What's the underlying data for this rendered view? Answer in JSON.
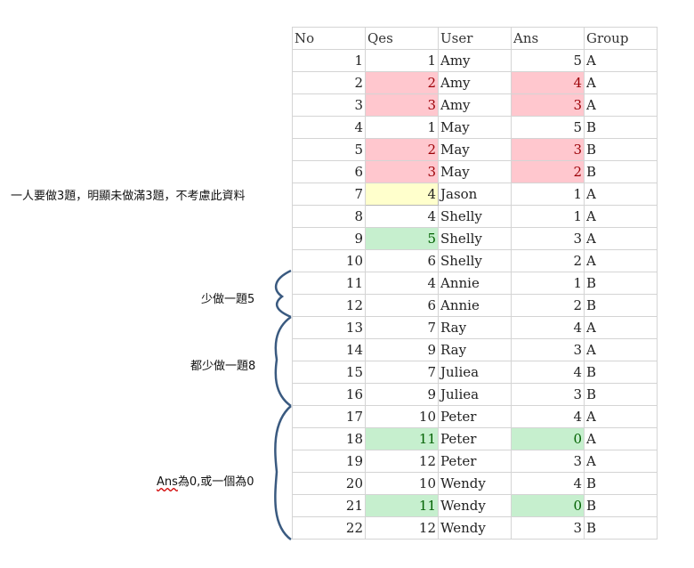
{
  "sheet": {
    "headers": [
      "No",
      "Qes",
      "User",
      "Ans",
      "Group"
    ],
    "rows": [
      {
        "no": "1",
        "qes": "1",
        "user": "Amy",
        "ans": "5",
        "group": "A"
      },
      {
        "no": "2",
        "qes": "2",
        "user": "Amy",
        "ans": "4",
        "group": "A",
        "qes_fill": "pink",
        "ans_fill": "pink"
      },
      {
        "no": "3",
        "qes": "3",
        "user": "Amy",
        "ans": "3",
        "group": "A",
        "qes_fill": "pink",
        "ans_fill": "pink"
      },
      {
        "no": "4",
        "qes": "1",
        "user": "May",
        "ans": "5",
        "group": "B"
      },
      {
        "no": "5",
        "qes": "2",
        "user": "May",
        "ans": "3",
        "group": "B",
        "qes_fill": "pink",
        "ans_fill": "pink"
      },
      {
        "no": "6",
        "qes": "3",
        "user": "May",
        "ans": "2",
        "group": "B",
        "qes_fill": "pink",
        "ans_fill": "pink"
      },
      {
        "no": "7",
        "qes": "4",
        "user": "Jason",
        "ans": "1",
        "group": "A",
        "qes_fill": "yellow"
      },
      {
        "no": "8",
        "qes": "4",
        "user": "Shelly",
        "ans": "1",
        "group": "A"
      },
      {
        "no": "9",
        "qes": "5",
        "user": "Shelly",
        "ans": "3",
        "group": "A",
        "qes_fill": "green"
      },
      {
        "no": "10",
        "qes": "6",
        "user": "Shelly",
        "ans": "2",
        "group": "A"
      },
      {
        "no": "11",
        "qes": "4",
        "user": "Annie",
        "ans": "1",
        "group": "B"
      },
      {
        "no": "12",
        "qes": "6",
        "user": "Annie",
        "ans": "2",
        "group": "B"
      },
      {
        "no": "13",
        "qes": "7",
        "user": "Ray",
        "ans": "4",
        "group": "A"
      },
      {
        "no": "14",
        "qes": "9",
        "user": "Ray",
        "ans": "3",
        "group": "A"
      },
      {
        "no": "15",
        "qes": "7",
        "user": "Juliea",
        "ans": "4",
        "group": "B"
      },
      {
        "no": "16",
        "qes": "9",
        "user": "Juliea",
        "ans": "3",
        "group": "B"
      },
      {
        "no": "17",
        "qes": "10",
        "user": "Peter",
        "ans": "4",
        "group": "A"
      },
      {
        "no": "18",
        "qes": "11",
        "user": "Peter",
        "ans": "0",
        "group": "A",
        "qes_fill": "green",
        "ans_fill": "green"
      },
      {
        "no": "19",
        "qes": "12",
        "user": "Peter",
        "ans": "3",
        "group": "A"
      },
      {
        "no": "20",
        "qes": "10",
        "user": "Wendy",
        "ans": "4",
        "group": "B"
      },
      {
        "no": "21",
        "qes": "11",
        "user": "Wendy",
        "ans": "0",
        "group": "B",
        "qes_fill": "green",
        "ans_fill": "green"
      },
      {
        "no": "22",
        "qes": "12",
        "user": "Wendy",
        "ans": "3",
        "group": "B"
      }
    ]
  },
  "annotations": {
    "note_jason": "一人要做3題，明顯未做滿3題，不考慮此資料",
    "note_annie": "少做一題5",
    "note_ray_juliea": "都少做一題8",
    "note_ans_prefix": "Ans",
    "note_ans_rest": "為0,或一個為0"
  },
  "colors": {
    "pink_fill": "#ffc7ce",
    "pink_text": "#9c0006",
    "green_fill": "#c6efce",
    "green_text": "#006100",
    "yellow_fill": "#ffffcc",
    "brace_color": "#3a5a80"
  }
}
